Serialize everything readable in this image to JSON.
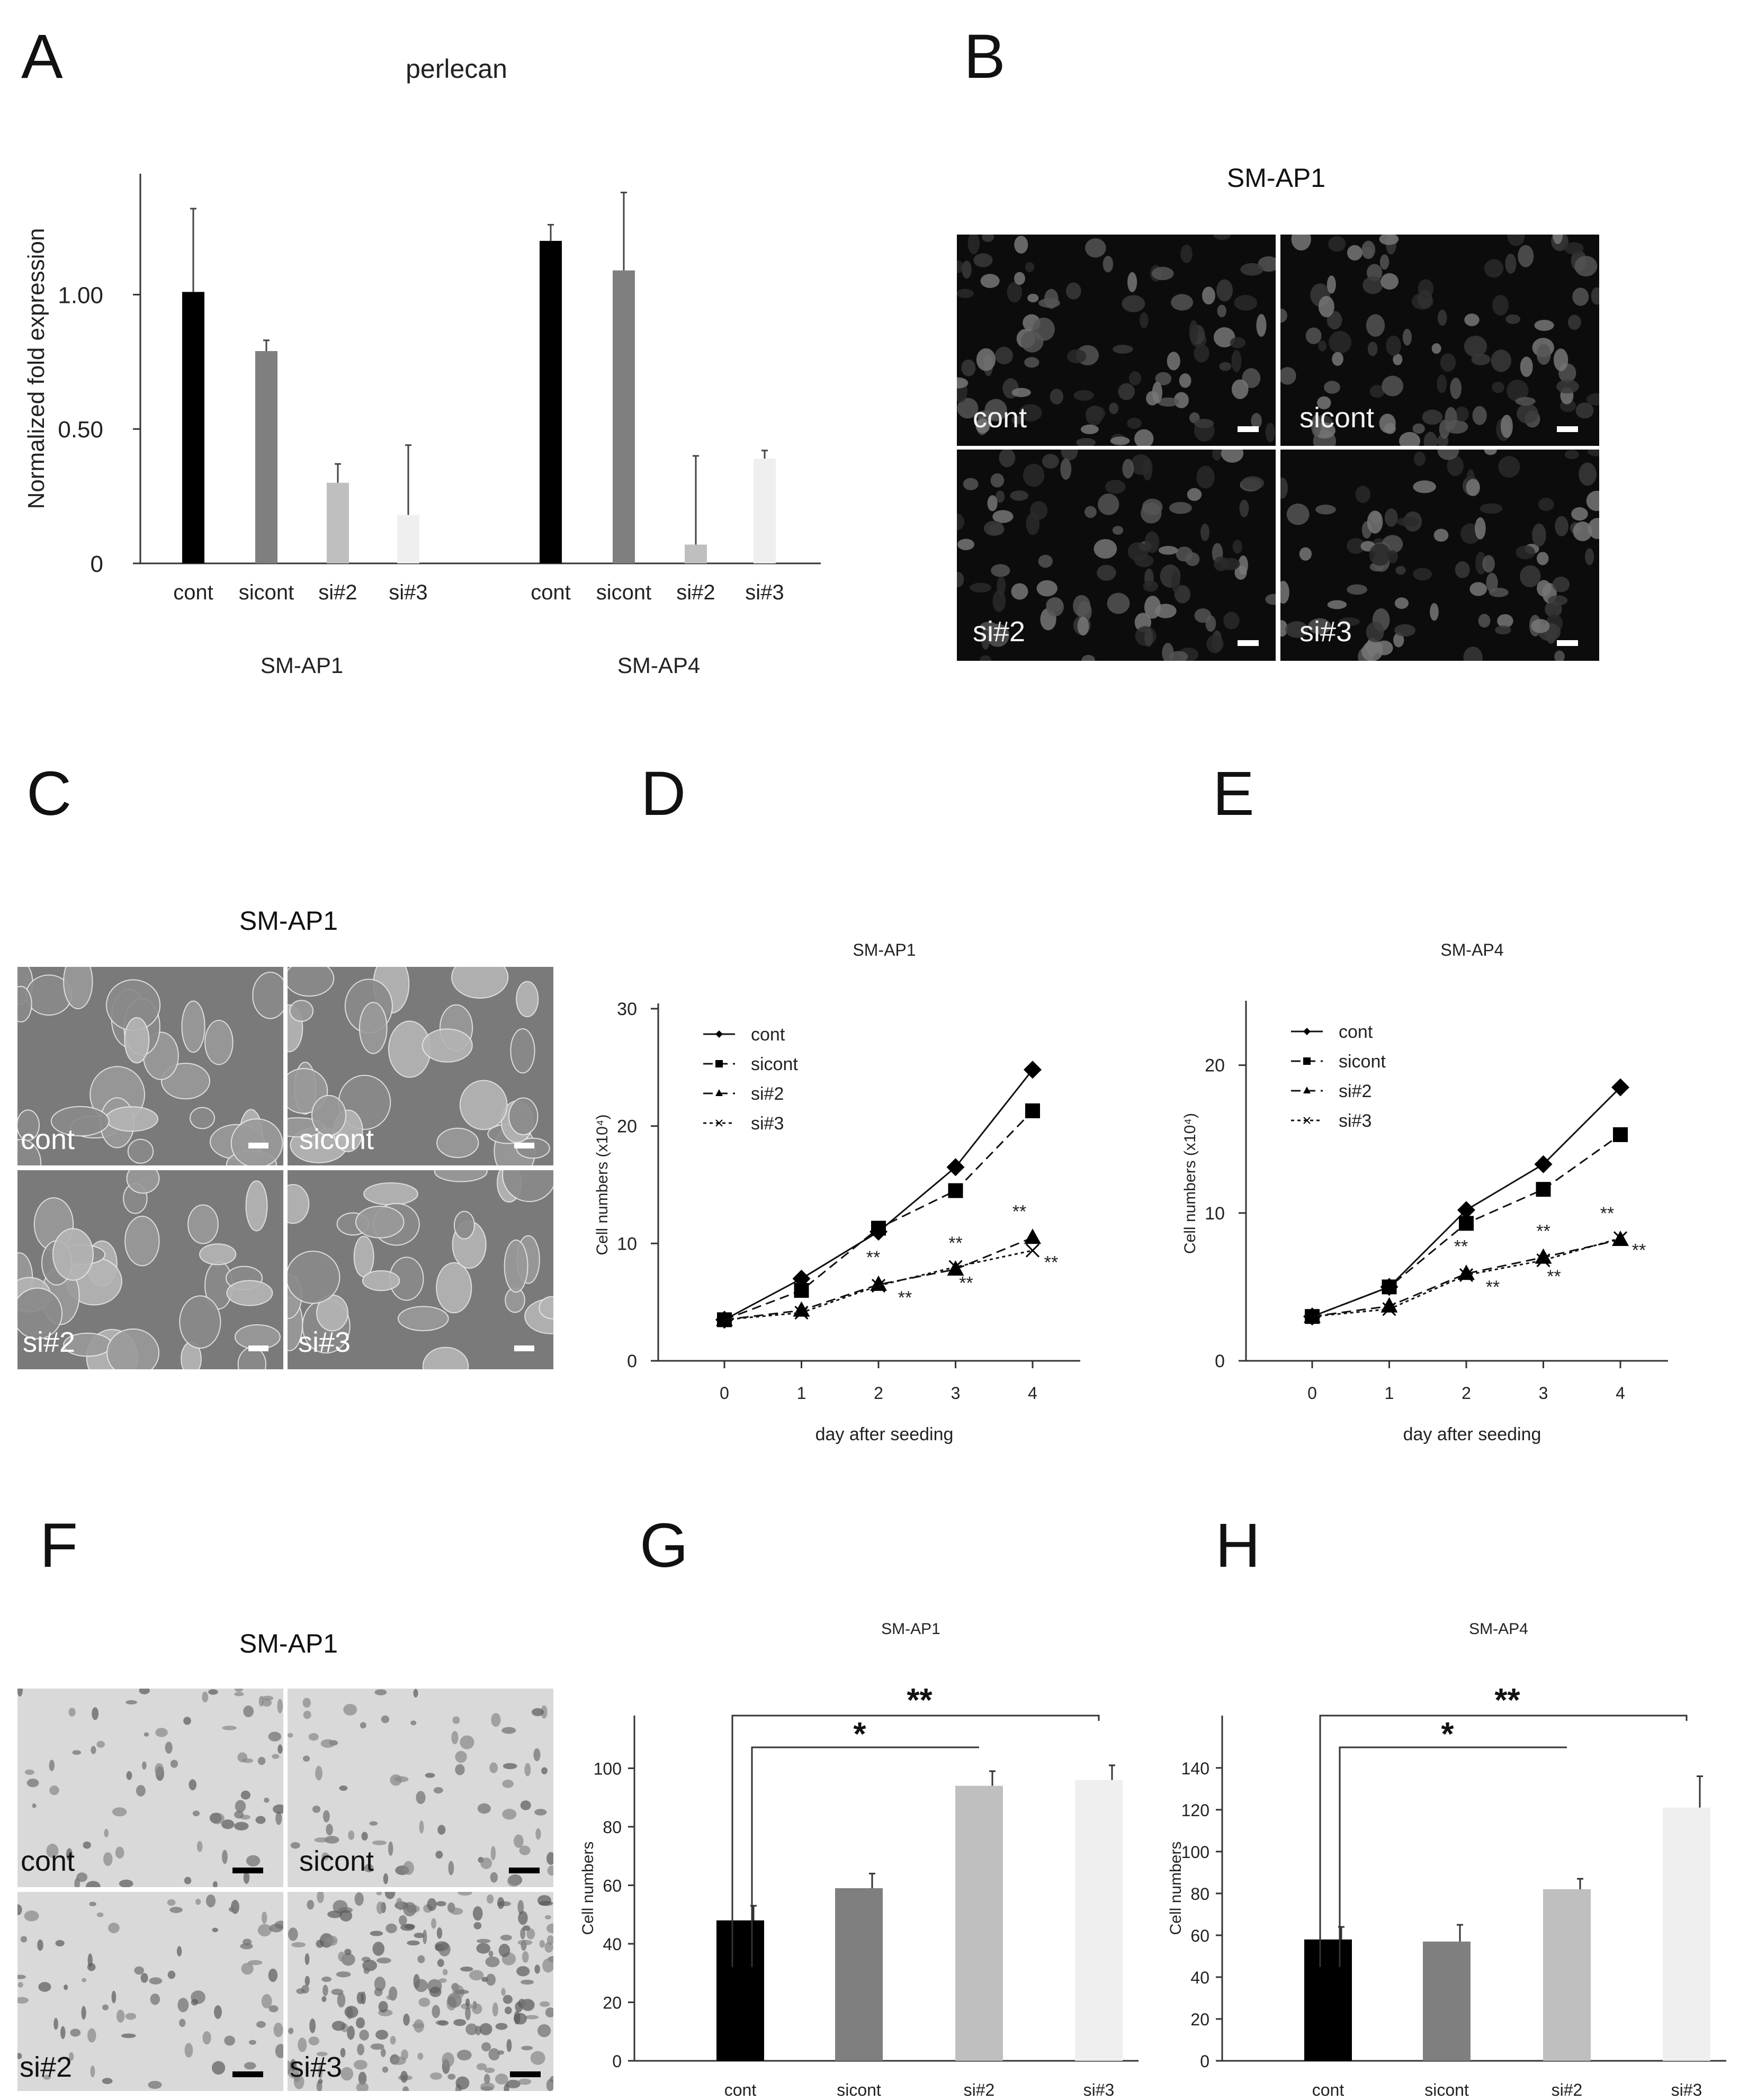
{
  "figure": {
    "panel_letters": [
      "A",
      "B",
      "C",
      "D",
      "E",
      "F",
      "G",
      "H"
    ],
    "colors": {
      "cont": "#000000",
      "sicont": "#7f7f7f",
      "si2": "#bfbfbf",
      "si3": "#efefef",
      "fluorescence_bg": "#0c0c0c",
      "phase_bg": "#7a7a7a",
      "brightfield_bg": "#d9d9d9"
    }
  },
  "panelB": {
    "title": "SM-AP1",
    "tiles": [
      "cont",
      "sicont",
      "si#2",
      "si#3"
    ]
  },
  "panelC": {
    "title": "SM-AP1",
    "tiles": [
      "cont",
      "sicont",
      "si#2",
      "si#3"
    ]
  },
  "panelF": {
    "title": "SM-AP1",
    "tiles": [
      "cont",
      "sicont",
      "si#2",
      "si#3"
    ]
  },
  "chart_data": [
    {
      "panel": "A",
      "type": "bar",
      "title": "perlecan",
      "ylabel": "Normalized fold expression",
      "ylim": [
        0,
        1.45
      ],
      "yticks": [
        0,
        0.5,
        1.0
      ],
      "ytick_labels": [
        "0",
        "0.50",
        "1.00"
      ],
      "groups": [
        "SM-AP1",
        "SM-AP4"
      ],
      "categories": [
        "cont",
        "sicont",
        "si#2",
        "si#3"
      ],
      "series": [
        {
          "group": "SM-AP1",
          "values": [
            1.01,
            0.79,
            0.3,
            0.18
          ],
          "errors": [
            0.31,
            0.04,
            0.07,
            0.26
          ]
        },
        {
          "group": "SM-AP4",
          "values": [
            1.2,
            1.09,
            0.07,
            0.39
          ],
          "errors": [
            0.06,
            0.29,
            0.33,
            0.03
          ]
        }
      ]
    },
    {
      "panel": "D",
      "type": "line",
      "title": "SM-AP1",
      "xlabel": "day after seeding",
      "ylabel": "Cell numbers (x10⁴)",
      "x": [
        0,
        1,
        2,
        3,
        4
      ],
      "ylim": [
        0,
        30
      ],
      "yticks": [
        0,
        10,
        20,
        30
      ],
      "series": [
        {
          "name": "cont",
          "values": [
            3.5,
            7.0,
            11.0,
            16.5,
            24.8
          ],
          "marker": "diamond",
          "dash": "solid"
        },
        {
          "name": "sicont",
          "values": [
            3.5,
            6.0,
            11.3,
            14.5,
            21.3
          ],
          "marker": "square",
          "dash": "dashed"
        },
        {
          "name": "si#2",
          "values": [
            3.5,
            4.3,
            6.5,
            7.8,
            10.5
          ],
          "marker": "triangle",
          "dash": "dashed"
        },
        {
          "name": "si#3",
          "values": [
            3.5,
            4.1,
            6.4,
            8.0,
            9.4
          ],
          "marker": "x",
          "dash": "dotted"
        }
      ],
      "annotations": [
        "**",
        "**",
        "**",
        "**",
        "**",
        "**"
      ]
    },
    {
      "panel": "E",
      "type": "line",
      "title": "SM-AP4",
      "xlabel": "day after seeding",
      "ylabel": "Cell numbers (x10⁴)",
      "x": [
        0,
        1,
        2,
        3,
        4
      ],
      "ylim": [
        0,
        24
      ],
      "yticks": [
        0,
        10,
        20
      ],
      "series": [
        {
          "name": "cont",
          "values": [
            3.0,
            5.0,
            10.2,
            13.3,
            18.5
          ],
          "marker": "diamond",
          "dash": "solid"
        },
        {
          "name": "sicont",
          "values": [
            3.0,
            5.0,
            9.3,
            11.6,
            15.3
          ],
          "marker": "square",
          "dash": "dashed"
        },
        {
          "name": "si#2",
          "values": [
            3.0,
            3.7,
            5.9,
            7.0,
            8.2
          ],
          "marker": "triangle",
          "dash": "dashed"
        },
        {
          "name": "si#3",
          "values": [
            3.0,
            3.5,
            5.8,
            6.8,
            8.3
          ],
          "marker": "x",
          "dash": "dotted"
        }
      ],
      "annotations": [
        "**",
        "**",
        "**",
        "**",
        "**",
        "**"
      ]
    },
    {
      "panel": "G",
      "type": "bar",
      "title": "SM-AP1",
      "ylabel": "Cell numbers",
      "categories": [
        "cont",
        "sicont",
        "si#2",
        "si#3"
      ],
      "values": [
        48,
        59,
        94,
        96
      ],
      "errors": [
        5,
        5,
        5,
        5
      ],
      "ylim": [
        0,
        118
      ],
      "yticks": [
        0,
        20,
        40,
        60,
        80,
        100
      ],
      "significance": [
        {
          "from": 0,
          "to": 3,
          "label": "**"
        },
        {
          "from": 0,
          "to": 2,
          "label": "*"
        }
      ]
    },
    {
      "panel": "H",
      "type": "bar",
      "title": "SM-AP4",
      "ylabel": "Cell numbers",
      "categories": [
        "cont",
        "sicont",
        "si#2",
        "si#3"
      ],
      "values": [
        58,
        57,
        82,
        121
      ],
      "errors": [
        6,
        8,
        5,
        15
      ],
      "ylim": [
        0,
        165
      ],
      "yticks": [
        0,
        20,
        40,
        60,
        80,
        100,
        120,
        140
      ],
      "significance": [
        {
          "from": 0,
          "to": 3,
          "label": "**"
        },
        {
          "from": 0,
          "to": 2,
          "label": "*"
        }
      ]
    }
  ]
}
